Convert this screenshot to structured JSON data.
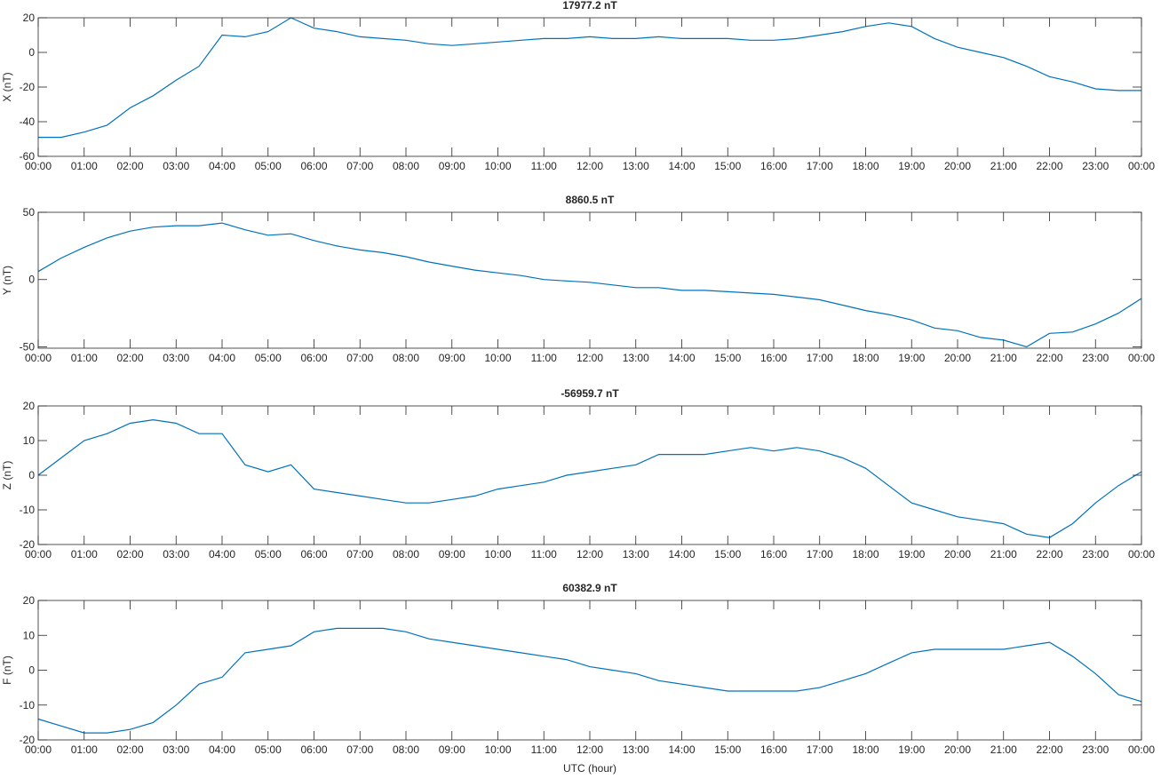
{
  "chart_data": [
    {
      "type": "line",
      "title": "17977.2 nT",
      "ylabel": "X (nT)",
      "x": [
        0,
        0.5,
        1,
        1.5,
        2,
        2.5,
        3,
        3.5,
        4,
        4.5,
        5,
        5.5,
        6,
        6.5,
        7,
        7.5,
        8,
        8.5,
        9,
        9.5,
        10,
        10.5,
        11,
        11.5,
        12,
        12.5,
        13,
        13.5,
        14,
        14.5,
        15,
        15.5,
        16,
        16.5,
        17,
        17.5,
        18,
        18.5,
        19,
        19.5,
        20,
        20.5,
        21,
        21.5,
        22,
        22.5,
        23,
        23.5,
        24
      ],
      "series": [
        {
          "color": "#0072bd",
          "values": [
            -49,
            -49,
            -46,
            -42,
            -32,
            -25,
            -16,
            -8,
            10,
            9,
            12,
            20,
            14,
            12,
            9,
            8,
            7,
            5,
            4,
            5,
            6,
            7,
            8,
            8,
            9,
            8,
            8,
            9,
            8,
            8,
            8,
            7,
            7,
            8,
            10,
            12,
            15,
            17,
            15,
            8,
            3,
            0,
            -3,
            -8,
            -14,
            -17,
            -21,
            -22,
            -22
          ]
        }
      ],
      "xlim": [
        0,
        24
      ],
      "ylim": [
        -60,
        20
      ],
      "yticks": [
        -60,
        -40,
        -20,
        0,
        20
      ],
      "xticks": [
        {
          "value": 0,
          "label": "00:00"
        },
        {
          "value": 1,
          "label": "01:00"
        },
        {
          "value": 2,
          "label": "02:00"
        },
        {
          "value": 3,
          "label": "03:00"
        },
        {
          "value": 4,
          "label": "04:00"
        },
        {
          "value": 5,
          "label": "05:00"
        },
        {
          "value": 6,
          "label": "06:00"
        },
        {
          "value": 7,
          "label": "07:00"
        },
        {
          "value": 8,
          "label": "08:00"
        },
        {
          "value": 9,
          "label": "09:00"
        },
        {
          "value": 10,
          "label": "10:00"
        },
        {
          "value": 11,
          "label": "11:00"
        },
        {
          "value": 12,
          "label": "12:00"
        },
        {
          "value": 13,
          "label": "13:00"
        },
        {
          "value": 14,
          "label": "14:00"
        },
        {
          "value": 15,
          "label": "15:00"
        },
        {
          "value": 16,
          "label": "16:00"
        },
        {
          "value": 17,
          "label": "17:00"
        },
        {
          "value": 18,
          "label": "18:00"
        },
        {
          "value": 19,
          "label": "19:00"
        },
        {
          "value": 20,
          "label": "20:00"
        },
        {
          "value": 21,
          "label": "21:00"
        },
        {
          "value": 22,
          "label": "22:00"
        },
        {
          "value": 23,
          "label": "23:00"
        },
        {
          "value": 24,
          "label": "00:00"
        }
      ]
    },
    {
      "type": "line",
      "title": "8860.5 nT",
      "ylabel": "Y (nT)",
      "x": [
        0,
        0.5,
        1,
        1.5,
        2,
        2.5,
        3,
        3.5,
        4,
        4.5,
        5,
        5.5,
        6,
        6.5,
        7,
        7.5,
        8,
        8.5,
        9,
        9.5,
        10,
        10.5,
        11,
        11.5,
        12,
        12.5,
        13,
        13.5,
        14,
        14.5,
        15,
        15.5,
        16,
        16.5,
        17,
        17.5,
        18,
        18.5,
        19,
        19.5,
        20,
        20.5,
        21,
        21.5,
        22,
        22.5,
        23,
        23.5,
        24
      ],
      "series": [
        {
          "color": "#0072bd",
          "values": [
            6,
            16,
            24,
            31,
            36,
            39,
            40,
            40,
            42,
            37,
            33,
            34,
            29,
            25,
            22,
            20,
            17,
            13,
            10,
            7,
            5,
            3,
            0,
            -1,
            -2,
            -4,
            -6,
            -6,
            -8,
            -8,
            -9,
            -10,
            -11,
            -13,
            -15,
            -19,
            -23,
            -26,
            -30,
            -36,
            -38,
            -43,
            -45,
            -50,
            -40,
            -39,
            -33,
            -25,
            -14
          ]
        }
      ],
      "xlim": [
        0,
        24
      ],
      "ylim": [
        -51,
        50
      ],
      "yticks": [
        -50,
        0,
        50
      ],
      "xticks": [
        {
          "value": 0,
          "label": "00:00"
        },
        {
          "value": 1,
          "label": "01:00"
        },
        {
          "value": 2,
          "label": "02:00"
        },
        {
          "value": 3,
          "label": "03:00"
        },
        {
          "value": 4,
          "label": "04:00"
        },
        {
          "value": 5,
          "label": "05:00"
        },
        {
          "value": 6,
          "label": "06:00"
        },
        {
          "value": 7,
          "label": "07:00"
        },
        {
          "value": 8,
          "label": "08:00"
        },
        {
          "value": 9,
          "label": "09:00"
        },
        {
          "value": 10,
          "label": "10:00"
        },
        {
          "value": 11,
          "label": "11:00"
        },
        {
          "value": 12,
          "label": "12:00"
        },
        {
          "value": 13,
          "label": "13:00"
        },
        {
          "value": 14,
          "label": "14:00"
        },
        {
          "value": 15,
          "label": "15:00"
        },
        {
          "value": 16,
          "label": "16:00"
        },
        {
          "value": 17,
          "label": "17:00"
        },
        {
          "value": 18,
          "label": "18:00"
        },
        {
          "value": 19,
          "label": "19:00"
        },
        {
          "value": 20,
          "label": "20:00"
        },
        {
          "value": 21,
          "label": "21:00"
        },
        {
          "value": 22,
          "label": "22:00"
        },
        {
          "value": 23,
          "label": "23:00"
        },
        {
          "value": 24,
          "label": "00:00"
        }
      ]
    },
    {
      "type": "line",
      "title": "-56959.7 nT",
      "ylabel": "Z (nT)",
      "x": [
        0,
        0.5,
        1,
        1.5,
        2,
        2.5,
        3,
        3.5,
        4,
        4.5,
        5,
        5.5,
        6,
        6.5,
        7,
        7.5,
        8,
        8.5,
        9,
        9.5,
        10,
        10.5,
        11,
        11.5,
        12,
        12.5,
        13,
        13.5,
        14,
        14.5,
        15,
        15.5,
        16,
        16.5,
        17,
        17.5,
        18,
        18.5,
        19,
        19.5,
        20,
        20.5,
        21,
        21.5,
        22,
        22.5,
        23,
        23.5,
        24
      ],
      "series": [
        {
          "color": "#0072bd",
          "values": [
            0,
            5,
            10,
            12,
            15,
            16,
            15,
            12,
            12,
            3,
            1,
            3,
            -4,
            -5,
            -6,
            -7,
            -8,
            -8,
            -7,
            -6,
            -4,
            -3,
            -2,
            0,
            1,
            2,
            3,
            6,
            6,
            6,
            7,
            8,
            7,
            8,
            7,
            5,
            2,
            -3,
            -8,
            -10,
            -12,
            -13,
            -14,
            -17,
            -18,
            -14,
            -8,
            -3,
            1
          ]
        }
      ],
      "xlim": [
        0,
        24
      ],
      "ylim": [
        -20,
        20
      ],
      "yticks": [
        -20,
        -10,
        0,
        10,
        20
      ],
      "xticks": [
        {
          "value": 0,
          "label": "00:00"
        },
        {
          "value": 1,
          "label": "01:00"
        },
        {
          "value": 2,
          "label": "02:00"
        },
        {
          "value": 3,
          "label": "03:00"
        },
        {
          "value": 4,
          "label": "04:00"
        },
        {
          "value": 5,
          "label": "05:00"
        },
        {
          "value": 6,
          "label": "06:00"
        },
        {
          "value": 7,
          "label": "07:00"
        },
        {
          "value": 8,
          "label": "08:00"
        },
        {
          "value": 9,
          "label": "09:00"
        },
        {
          "value": 10,
          "label": "10:00"
        },
        {
          "value": 11,
          "label": "11:00"
        },
        {
          "value": 12,
          "label": "12:00"
        },
        {
          "value": 13,
          "label": "13:00"
        },
        {
          "value": 14,
          "label": "14:00"
        },
        {
          "value": 15,
          "label": "15:00"
        },
        {
          "value": 16,
          "label": "16:00"
        },
        {
          "value": 17,
          "label": "17:00"
        },
        {
          "value": 18,
          "label": "18:00"
        },
        {
          "value": 19,
          "label": "19:00"
        },
        {
          "value": 20,
          "label": "20:00"
        },
        {
          "value": 21,
          "label": "21:00"
        },
        {
          "value": 22,
          "label": "22:00"
        },
        {
          "value": 23,
          "label": "23:00"
        },
        {
          "value": 24,
          "label": "00:00"
        }
      ]
    },
    {
      "type": "line",
      "title": "60382.9 nT",
      "ylabel": "F (nT)",
      "xlabel": "UTC (hour)",
      "x": [
        0,
        0.5,
        1,
        1.5,
        2,
        2.5,
        3,
        3.5,
        4,
        4.5,
        5,
        5.5,
        6,
        6.5,
        7,
        7.5,
        8,
        8.5,
        9,
        9.5,
        10,
        10.5,
        11,
        11.5,
        12,
        12.5,
        13,
        13.5,
        14,
        14.5,
        15,
        15.5,
        16,
        16.5,
        17,
        17.5,
        18,
        18.5,
        19,
        19.5,
        20,
        20.5,
        21,
        21.5,
        22,
        22.5,
        23,
        23.5,
        24
      ],
      "series": [
        {
          "color": "#0072bd",
          "values": [
            -14,
            -16,
            -18,
            -18,
            -17,
            -15,
            -10,
            -4,
            -2,
            5,
            6,
            7,
            11,
            12,
            12,
            12,
            11,
            9,
            8,
            7,
            6,
            5,
            4,
            3,
            1,
            0,
            -1,
            -3,
            -4,
            -5,
            -6,
            -6,
            -6,
            -6,
            -5,
            -3,
            -1,
            2,
            5,
            6,
            6,
            6,
            6,
            7,
            8,
            4,
            -1,
            -7,
            -9
          ]
        }
      ],
      "xlim": [
        0,
        24
      ],
      "ylim": [
        -20,
        20
      ],
      "yticks": [
        -20,
        -10,
        0,
        10,
        20
      ],
      "xticks": [
        {
          "value": 0,
          "label": "00:00"
        },
        {
          "value": 1,
          "label": "01:00"
        },
        {
          "value": 2,
          "label": "02:00"
        },
        {
          "value": 3,
          "label": "03:00"
        },
        {
          "value": 4,
          "label": "04:00"
        },
        {
          "value": 5,
          "label": "05:00"
        },
        {
          "value": 6,
          "label": "06:00"
        },
        {
          "value": 7,
          "label": "07:00"
        },
        {
          "value": 8,
          "label": "08:00"
        },
        {
          "value": 9,
          "label": "09:00"
        },
        {
          "value": 10,
          "label": "10:00"
        },
        {
          "value": 11,
          "label": "11:00"
        },
        {
          "value": 12,
          "label": "12:00"
        },
        {
          "value": 13,
          "label": "13:00"
        },
        {
          "value": 14,
          "label": "14:00"
        },
        {
          "value": 15,
          "label": "15:00"
        },
        {
          "value": 16,
          "label": "16:00"
        },
        {
          "value": 17,
          "label": "17:00"
        },
        {
          "value": 18,
          "label": "18:00"
        },
        {
          "value": 19,
          "label": "19:00"
        },
        {
          "value": 20,
          "label": "20:00"
        },
        {
          "value": 21,
          "label": "21:00"
        },
        {
          "value": 22,
          "label": "22:00"
        },
        {
          "value": 23,
          "label": "23:00"
        },
        {
          "value": 24,
          "label": "00:00"
        }
      ]
    }
  ]
}
